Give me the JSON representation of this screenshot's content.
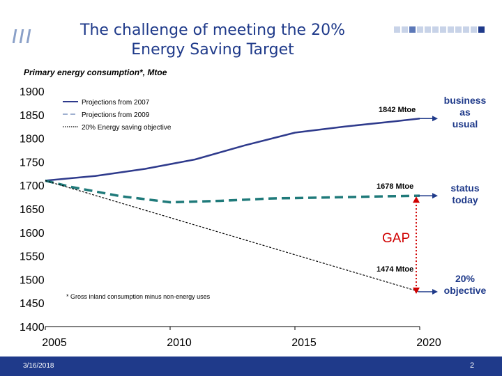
{
  "title_line1": "The challenge of meeting the 20%",
  "title_line2": "Energy Saving Target",
  "subtitle": "Primary energy consumption*, Mtoe",
  "footnote": "* Gross inland consumption minus non-energy uses",
  "footer": {
    "date": "3/16/2018",
    "page": "2"
  },
  "colors": {
    "accent": "#1f3a8a",
    "series2007": "#2e3a8c",
    "series2009": "#1f7a7a",
    "gap": "#d00000"
  },
  "chart_data": {
    "type": "line",
    "ylim": [
      1400,
      1900
    ],
    "yticks": [
      1400,
      1450,
      1500,
      1550,
      1600,
      1650,
      1700,
      1750,
      1800,
      1850,
      1900
    ],
    "xlim": [
      2005,
      2020
    ],
    "xticks": [
      2005,
      2010,
      2015,
      2020
    ],
    "legend": {
      "position": "top-left",
      "entries": [
        "Projections from 2007",
        "Projections from 2009",
        "20% Energy saving objective"
      ]
    },
    "series": [
      {
        "name": "Projections from 2007",
        "style": "solid",
        "x": [
          2005,
          2007,
          2009,
          2011,
          2013,
          2015,
          2017,
          2019,
          2020
        ],
        "y": [
          1710,
          1720,
          1735,
          1755,
          1785,
          1812,
          1825,
          1836,
          1842
        ]
      },
      {
        "name": "Projections from 2009",
        "style": "dashed",
        "x": [
          2005,
          2006,
          2008,
          2010,
          2012,
          2014,
          2016,
          2018,
          2020
        ],
        "y": [
          1710,
          1697,
          1677,
          1664,
          1667,
          1672,
          1674,
          1676,
          1678
        ]
      },
      {
        "name": "20% Energy saving objective",
        "style": "dotted",
        "x": [
          2005,
          2020
        ],
        "y": [
          1710,
          1474
        ]
      }
    ],
    "annotations": {
      "bau_value": "1842 Mtoe",
      "status_value": "1678 Mtoe",
      "objective_value": "1474 Mtoe",
      "gap_label": "GAP",
      "bau_label": [
        "business",
        "as",
        "usual"
      ],
      "status_label": [
        "status",
        "today"
      ],
      "objective_label": [
        "20%",
        "objective"
      ]
    }
  }
}
